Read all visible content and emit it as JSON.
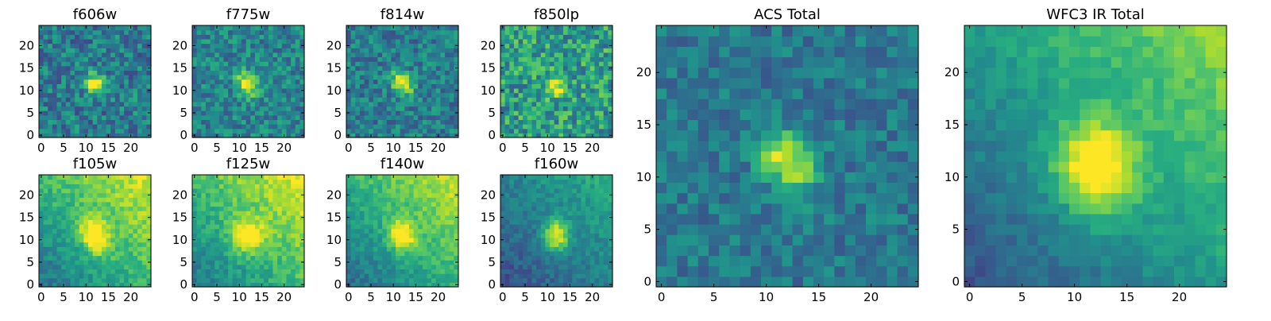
{
  "chart_data": {
    "type": "heatmap",
    "colormap": "viridis",
    "grid": false,
    "image_size": [
      25,
      25
    ],
    "panels": [
      {
        "title": "f606w",
        "source": {
          "x": 12.0,
          "y": 11.5,
          "sx": 1.5,
          "sy": 1.8,
          "theta": 0.6,
          "peak": 0.62
        },
        "base": 0.42,
        "noise": 0.2,
        "bg": [
          0.0,
          0.0,
          0.0
        ],
        "seed": 11,
        "xticks": [
          0,
          5,
          10,
          15,
          20
        ],
        "yticks": [
          0,
          5,
          10,
          15,
          20
        ],
        "xlim": [
          -0.5,
          24.5
        ],
        "ylim": [
          -0.5,
          24.5
        ]
      },
      {
        "title": "f775w",
        "source": {
          "x": 12.0,
          "y": 11.5,
          "sx": 1.5,
          "sy": 2.0,
          "theta": 0.6,
          "peak": 0.58
        },
        "base": 0.45,
        "noise": 0.18,
        "bg": [
          0.0,
          0.0,
          0.0
        ],
        "seed": 23,
        "xticks": [
          0,
          5,
          10,
          15,
          20
        ],
        "yticks": [
          0,
          5,
          10,
          15,
          20
        ],
        "xlim": [
          -0.5,
          24.5
        ],
        "ylim": [
          -0.5,
          24.5
        ]
      },
      {
        "title": "f814w",
        "source": {
          "x": 12.0,
          "y": 11.5,
          "sx": 1.5,
          "sy": 2.0,
          "theta": 0.6,
          "peak": 0.58
        },
        "base": 0.42,
        "noise": 0.18,
        "bg": [
          0.0,
          0.0,
          0.0
        ],
        "seed": 37,
        "xticks": [
          0,
          5,
          10,
          15,
          20
        ],
        "yticks": [
          0,
          5,
          10,
          15,
          20
        ],
        "xlim": [
          -0.5,
          24.5
        ],
        "ylim": [
          -0.5,
          24.5
        ]
      },
      {
        "title": "f850lp",
        "source": {
          "x": 12.0,
          "y": 11.0,
          "sx": 1.5,
          "sy": 1.5,
          "theta": 0.0,
          "peak": 0.45
        },
        "base": 0.55,
        "noise": 0.24,
        "bg": [
          0.0,
          0.0,
          0.0
        ],
        "seed": 41,
        "xticks": [
          0,
          5,
          10,
          15,
          20
        ],
        "yticks": [
          0,
          5,
          10,
          15,
          20
        ],
        "xlim": [
          -0.5,
          24.5
        ],
        "ylim": [
          -0.5,
          24.5
        ]
      },
      {
        "title": "f105w",
        "source": {
          "x": 12.0,
          "y": 11.0,
          "sx": 2.0,
          "sy": 3.0,
          "theta": 0.4,
          "peak": 0.5
        },
        "base": 0.48,
        "noise": 0.1,
        "bg": [
          0.012,
          0.012,
          -0.1
        ],
        "seed": 53,
        "xticks": [
          0,
          5,
          10,
          15,
          20
        ],
        "yticks": [
          0,
          5,
          10,
          15,
          20
        ],
        "xlim": [
          -0.5,
          24.5
        ],
        "ylim": [
          -0.5,
          24.5
        ]
      },
      {
        "title": "f125w",
        "source": {
          "x": 12.0,
          "y": 11.0,
          "sx": 2.5,
          "sy": 2.5,
          "theta": 0.0,
          "peak": 0.45
        },
        "base": 0.5,
        "noise": 0.1,
        "bg": [
          0.012,
          0.012,
          -0.1
        ],
        "seed": 67,
        "xticks": [
          0,
          5,
          10,
          15,
          20
        ],
        "yticks": [
          0,
          5,
          10,
          15,
          20
        ],
        "xlim": [
          -0.5,
          24.5
        ],
        "ylim": [
          -0.5,
          24.5
        ]
      },
      {
        "title": "f140w",
        "source": {
          "x": 12.0,
          "y": 11.0,
          "sx": 2.0,
          "sy": 2.5,
          "theta": 0.3,
          "peak": 0.5
        },
        "base": 0.45,
        "noise": 0.09,
        "bg": [
          0.012,
          0.012,
          -0.1
        ],
        "seed": 79,
        "xticks": [
          0,
          5,
          10,
          15,
          20
        ],
        "yticks": [
          0,
          5,
          10,
          15,
          20
        ],
        "xlim": [
          -0.5,
          24.5
        ],
        "ylim": [
          -0.5,
          24.5
        ]
      },
      {
        "title": "f160w",
        "source": {
          "x": 12.0,
          "y": 11.0,
          "sx": 2.0,
          "sy": 2.5,
          "theta": 0.0,
          "peak": 0.55
        },
        "base": 0.32,
        "noise": 0.09,
        "bg": [
          0.008,
          0.008,
          -0.08
        ],
        "seed": 83,
        "xticks": [
          0,
          5,
          10,
          15,
          20
        ],
        "yticks": [
          0,
          5,
          10,
          15,
          20
        ],
        "xlim": [
          -0.5,
          24.5
        ],
        "ylim": [
          -0.5,
          24.5
        ]
      },
      {
        "title": "ACS Total",
        "source": {
          "x": 12.0,
          "y": 11.5,
          "sx": 1.6,
          "sy": 2.2,
          "theta": 0.6,
          "peak": 0.56
        },
        "base": 0.4,
        "noise": 0.13,
        "bg": [
          0.0,
          0.0,
          0.0
        ],
        "seed": 97,
        "xticks": [
          0,
          5,
          10,
          15,
          20
        ],
        "yticks": [
          0,
          5,
          10,
          15,
          20
        ],
        "xlim": [
          -0.5,
          24.5
        ],
        "ylim": [
          -0.5,
          24.5
        ]
      },
      {
        "title": "WFC3 IR Total",
        "source": {
          "x": 12.0,
          "y": 11.0,
          "sx": 2.6,
          "sy": 3.0,
          "theta": 0.2,
          "peak": 0.6
        },
        "base": 0.36,
        "noise": 0.07,
        "bg": [
          0.012,
          0.012,
          -0.1
        ],
        "seed": 101,
        "xticks": [
          0,
          5,
          10,
          15,
          20
        ],
        "yticks": [
          0,
          5,
          10,
          15,
          20
        ],
        "xlim": [
          -0.5,
          24.5
        ],
        "ylim": [
          -0.5,
          24.5
        ]
      }
    ]
  }
}
